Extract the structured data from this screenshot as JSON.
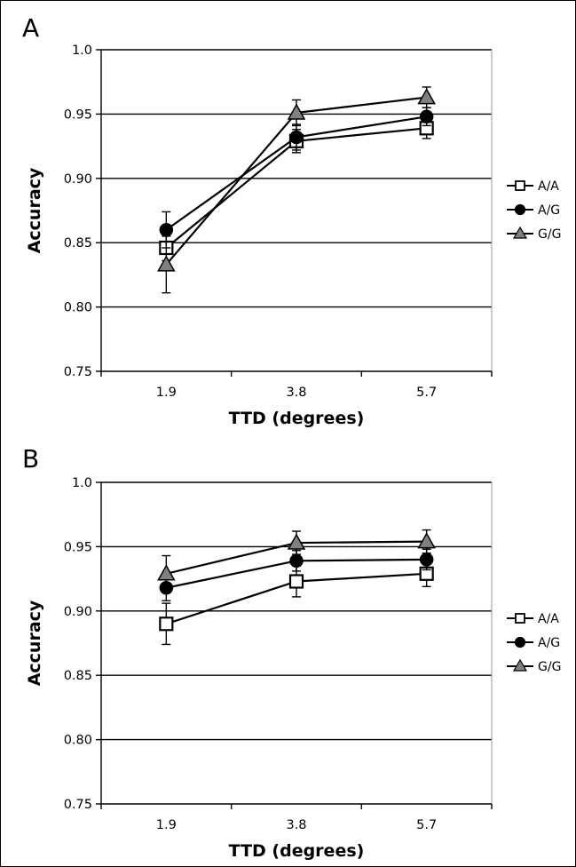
{
  "figure": {
    "panels": [
      {
        "label": "A"
      },
      {
        "label": "B"
      }
    ]
  },
  "chart_data": [
    {
      "type": "line",
      "panel": "A",
      "xlabel": "TTD (degrees)",
      "ylabel": "Accuracy",
      "categories": [
        "1.9",
        "3.8",
        "5.7"
      ],
      "ylim": [
        0.75,
        1.0
      ],
      "yticks": [
        "0.75",
        "0.80",
        "0.85",
        "0.90",
        "0.95",
        "1.0"
      ],
      "grid": "horizontal",
      "legend_position": "right",
      "series": [
        {
          "name": "A/A",
          "marker": "square",
          "fill": "#ffffff",
          "values": [
            0.846,
            0.929,
            0.939
          ],
          "errors": [
            0.01,
            0.009,
            0.008
          ]
        },
        {
          "name": "A/G",
          "marker": "circle",
          "fill": "#000000",
          "values": [
            0.86,
            0.932,
            0.948
          ],
          "errors": [
            0.014,
            0.01,
            0.007
          ]
        },
        {
          "name": "G/G",
          "marker": "triangle",
          "fill": "#808080",
          "values": [
            0.833,
            0.951,
            0.963
          ],
          "errors": [
            0.022,
            0.01,
            0.008
          ]
        }
      ]
    },
    {
      "type": "line",
      "panel": "B",
      "xlabel": "TTD (degrees)",
      "ylabel": "Accuracy",
      "categories": [
        "1.9",
        "3.8",
        "5.7"
      ],
      "ylim": [
        0.75,
        1.0
      ],
      "yticks": [
        "0.75",
        "0.80",
        "0.85",
        "0.90",
        "0.95",
        "1.0"
      ],
      "grid": "horizontal",
      "legend_position": "right",
      "series": [
        {
          "name": "A/A",
          "marker": "square",
          "fill": "#ffffff",
          "values": [
            0.89,
            0.923,
            0.929
          ],
          "errors": [
            0.016,
            0.012,
            0.01
          ]
        },
        {
          "name": "A/G",
          "marker": "circle",
          "fill": "#000000",
          "values": [
            0.918,
            0.939,
            0.94
          ],
          "errors": [
            0.01,
            0.008,
            0.008
          ]
        },
        {
          "name": "G/G",
          "marker": "triangle",
          "fill": "#808080",
          "values": [
            0.929,
            0.953,
            0.954
          ],
          "errors": [
            0.014,
            0.009,
            0.009
          ]
        }
      ]
    }
  ]
}
